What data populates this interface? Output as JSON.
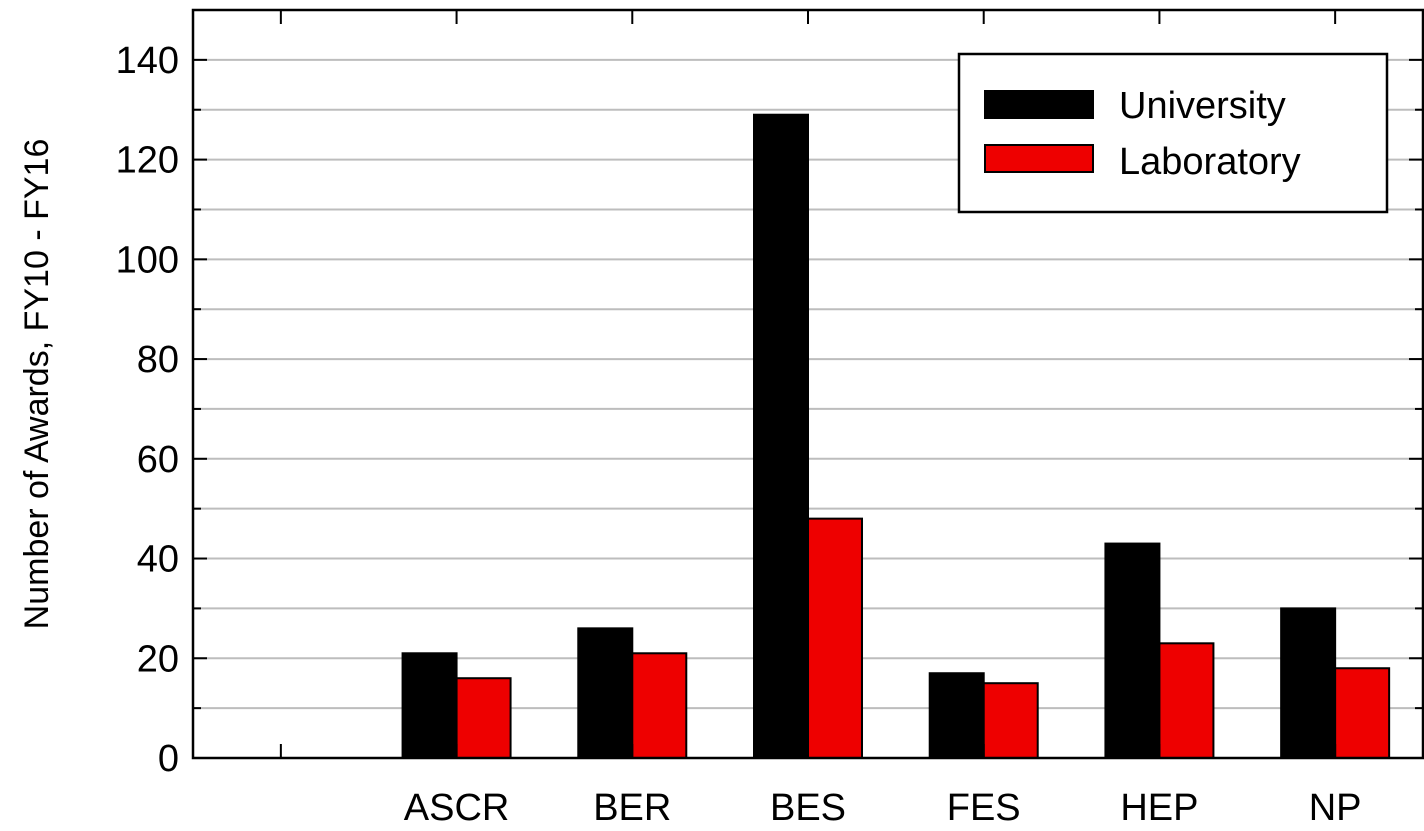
{
  "chart_data": {
    "type": "bar",
    "categories": [
      "ASCR",
      "BER",
      "BES",
      "FES",
      "HEP",
      "NP"
    ],
    "series": [
      {
        "name": "University",
        "color": "#000000",
        "values": [
          21,
          26,
          129,
          17,
          43,
          30
        ]
      },
      {
        "name": "Laboratory",
        "color": "#ee0000",
        "values": [
          16,
          21,
          48,
          15,
          23,
          18
        ]
      }
    ],
    "title": "",
    "xlabel": "",
    "ylabel": "Number of Awards, FY10 - FY16",
    "ylim": [
      0,
      150
    ],
    "yticks": [
      0,
      20,
      40,
      60,
      80,
      100,
      120,
      140
    ],
    "minor_tick_step": 10,
    "x_slots": 7,
    "grid": true,
    "legend_position": "top-right"
  }
}
